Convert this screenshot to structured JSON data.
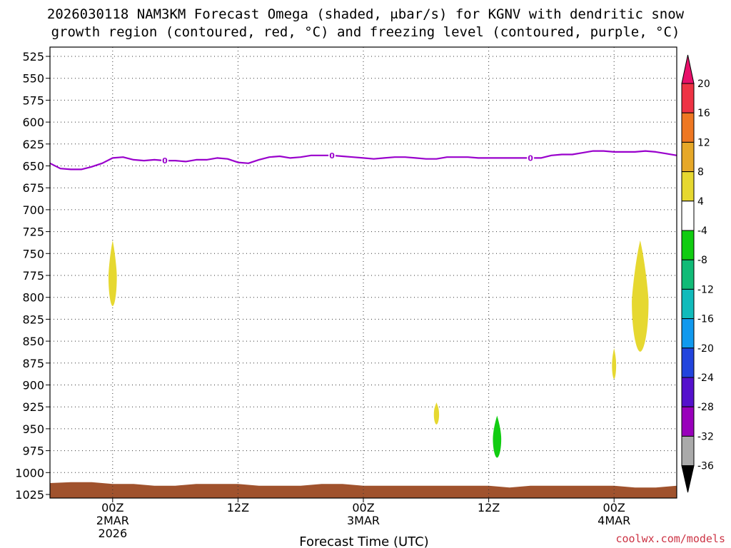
{
  "chart_data": {
    "type": "heatmap",
    "title_lines": [
      "2026030118 NAM3KM Forecast Omega (shaded, μbar/s) for KGNV with dendritic snow",
      "growth region (contoured, red, °C) and freezing level (contoured, purple, °C)"
    ],
    "xlabel": "Forecast Time (UTC)",
    "credit": "coolwx.com/models",
    "x_range_hours": [
      -6,
      54
    ],
    "y_range_mb": [
      520,
      1025
    ],
    "x_ticks": [
      {
        "hour": 0,
        "lines": [
          "00Z",
          "2MAR",
          "2026"
        ]
      },
      {
        "hour": 12,
        "lines": [
          "12Z"
        ]
      },
      {
        "hour": 24,
        "lines": [
          "00Z",
          "3MAR"
        ]
      },
      {
        "hour": 36,
        "lines": [
          "12Z"
        ]
      },
      {
        "hour": 48,
        "lines": [
          "00Z",
          "4MAR"
        ]
      }
    ],
    "y_ticks": [
      525,
      550,
      575,
      600,
      625,
      650,
      675,
      700,
      725,
      750,
      775,
      800,
      825,
      850,
      875,
      900,
      925,
      950,
      975,
      1000,
      1025
    ],
    "grid": true,
    "colorbar": {
      "labels": [
        "20",
        "16",
        "12",
        "8",
        "4",
        "-4",
        "-8",
        "-12",
        "-16",
        "-20",
        "-24",
        "-28",
        "-32",
        "-36"
      ],
      "levels": [
        20,
        16,
        12,
        8,
        4,
        -4,
        -8,
        -12,
        -16,
        -20,
        -24,
        -28,
        -32,
        -36
      ],
      "colors": [
        "#ee3344",
        "#ee7722",
        "#e6a828",
        "#e6d830",
        "#ffffff",
        "#11cc11",
        "#11bb77",
        "#11bbbb",
        "#1199ee",
        "#2244dd",
        "#5511cc",
        "#9900bb",
        "#aaaaaa"
      ],
      "top_color": "#e8106a",
      "bottom_color": "#000000"
    },
    "freezing_level": {
      "label": "0",
      "color": "#9900cc",
      "label_hours": [
        5,
        21,
        40
      ],
      "hours": [
        -6,
        -5,
        -4,
        -3,
        -2,
        -1,
        0,
        1,
        2,
        3,
        4,
        5,
        6,
        7,
        8,
        9,
        10,
        11,
        12,
        13,
        14,
        15,
        16,
        17,
        18,
        19,
        20,
        21,
        22,
        23,
        24,
        25,
        26,
        27,
        28,
        29,
        30,
        31,
        32,
        33,
        34,
        35,
        36,
        37,
        38,
        39,
        40,
        41,
        42,
        43,
        44,
        45,
        46,
        47,
        48,
        49,
        50,
        51,
        52,
        53,
        54
      ],
      "pressure_mb": [
        647,
        653,
        654,
        654,
        651,
        647,
        641,
        640,
        643,
        644,
        643,
        644,
        644,
        645,
        643,
        643,
        641,
        642,
        646,
        647,
        643,
        640,
        639,
        641,
        640,
        638,
        638,
        638,
        639,
        640,
        641,
        642,
        641,
        640,
        640,
        641,
        642,
        642,
        640,
        640,
        640,
        641,
        641,
        641,
        641,
        641,
        641,
        641,
        638,
        637,
        637,
        635,
        633,
        633,
        634,
        634,
        634,
        633,
        634,
        636,
        638
      ]
    },
    "omega_features": [
      {
        "kind": "ascent",
        "value": 6,
        "hour": 0,
        "p_top": 735,
        "p_bottom": 810,
        "half_width_hours": 0.4
      },
      {
        "kind": "ascent",
        "value": 6,
        "hour": 50.5,
        "p_top": 735,
        "p_bottom": 862,
        "half_width_hours": 0.8
      },
      {
        "kind": "ascent",
        "value": 6,
        "hour": 48,
        "p_top": 858,
        "p_bottom": 893,
        "half_width_hours": 0.2
      },
      {
        "kind": "ascent",
        "value": 6,
        "hour": 31,
        "p_top": 920,
        "p_bottom": 945,
        "half_width_hours": 0.25
      },
      {
        "kind": "descent",
        "value": -6,
        "hour": 36.8,
        "p_top": 935,
        "p_bottom": 983,
        "half_width_hours": 0.4
      }
    ],
    "terrain": {
      "color": "#a0522d",
      "hours": [
        -6,
        -4,
        -2,
        0,
        2,
        4,
        6,
        8,
        10,
        12,
        14,
        16,
        18,
        20,
        22,
        24,
        26,
        28,
        30,
        32,
        34,
        36,
        38,
        40,
        42,
        44,
        46,
        48,
        50,
        52,
        54
      ],
      "surface_mb": [
        1012,
        1011,
        1011,
        1013,
        1013,
        1015,
        1015,
        1013,
        1013,
        1013,
        1015,
        1015,
        1015,
        1013,
        1013,
        1015,
        1015,
        1015,
        1015,
        1015,
        1015,
        1015,
        1017,
        1015,
        1015,
        1015,
        1015,
        1015,
        1017,
        1017,
        1015
      ]
    }
  }
}
